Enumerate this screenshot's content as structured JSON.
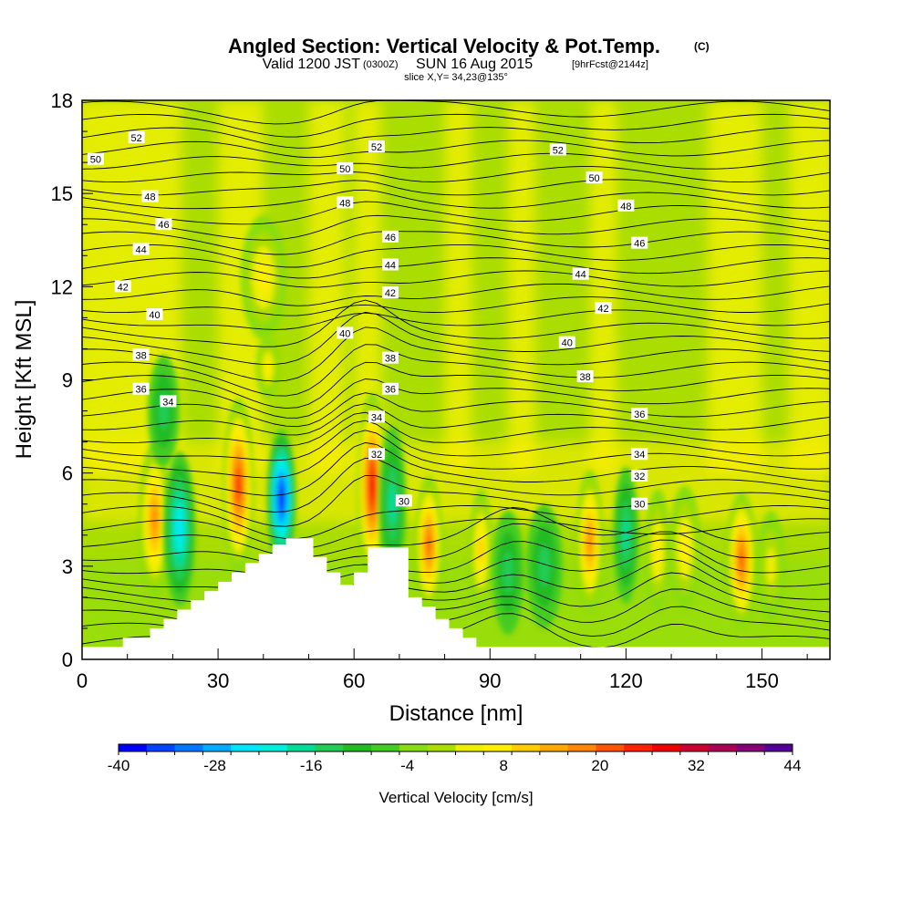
{
  "header": {
    "title": "Angled Section: Vertical Velocity & Pot.Temp.",
    "title_unit": "(C)",
    "valid_prefix": "Valid 1200 JST",
    "valid_zulu": "(0300Z)",
    "valid_date": "SUN 16 Aug 2015",
    "forecast": "[9hrFcst@2144z]",
    "slice": "slice X,Y= 34,23@135°"
  },
  "chart_data": {
    "type": "heatmap",
    "xlabel": "Distance [nm]",
    "ylabel": "Height [Kft MSL]",
    "xlim": [
      0,
      165
    ],
    "ylim": [
      0,
      18
    ],
    "x_ticks": [
      "0",
      "30",
      "60",
      "90",
      "120",
      "150"
    ],
    "y_ticks": [
      "0",
      "3",
      "6",
      "9",
      "12",
      "15",
      "18"
    ],
    "colorbar": {
      "label": "Vertical Velocity [cm/s]",
      "min": -40,
      "max": 44,
      "step": 4,
      "tick_labels": [
        "-40",
        "-28",
        "-16",
        "-4",
        "8",
        "20",
        "32",
        "44"
      ],
      "colors": [
        "#0000ff",
        "#0044ff",
        "#0077ff",
        "#00aaff",
        "#00e5ff",
        "#00eedd",
        "#00dd99",
        "#22cc55",
        "#22bb22",
        "#44cc22",
        "#88dd11",
        "#aadd00",
        "#eeee00",
        "#ffee00",
        "#ffcc00",
        "#ffaa00",
        "#ff8800",
        "#ff5500",
        "#ff2200",
        "#ee0000",
        "#cc0033",
        "#aa0055",
        "#880077",
        "#550099"
      ]
    },
    "features": [
      {
        "x": 16,
        "y": 4.5,
        "w": 3.5,
        "h": 2.5,
        "value": 22
      },
      {
        "x": 21.5,
        "y": 4.2,
        "w": 3.5,
        "h": 2.5,
        "value": -18
      },
      {
        "x": 34.5,
        "y": 5.6,
        "w": 3.5,
        "h": 2.8,
        "value": 30
      },
      {
        "x": 44,
        "y": 5.2,
        "w": 3.2,
        "h": 2.2,
        "value": -34
      },
      {
        "x": 64,
        "y": 5.6,
        "w": 3.3,
        "h": 3.0,
        "value": 36
      },
      {
        "x": 68.5,
        "y": 5.0,
        "w": 3.0,
        "h": 2.5,
        "value": -10
      },
      {
        "x": 76.5,
        "y": 3.7,
        "w": 3.0,
        "h": 2.2,
        "value": 26
      },
      {
        "x": 88,
        "y": 3.5,
        "w": 2.5,
        "h": 2.0,
        "value": 14
      },
      {
        "x": 94,
        "y": 2.8,
        "w": 3.5,
        "h": 2.0,
        "value": -8
      },
      {
        "x": 102,
        "y": 3.0,
        "w": 4.0,
        "h": 2.0,
        "value": -8
      },
      {
        "x": 112,
        "y": 3.8,
        "w": 3.0,
        "h": 2.3,
        "value": 22
      },
      {
        "x": 120,
        "y": 4.0,
        "w": 2.8,
        "h": 2.2,
        "value": -12
      },
      {
        "x": 127,
        "y": 3.5,
        "w": 2.8,
        "h": 2.0,
        "value": 10
      },
      {
        "x": 133,
        "y": 3.6,
        "w": 3.5,
        "h": 2.0,
        "value": 10
      },
      {
        "x": 145.5,
        "y": 3.2,
        "w": 3.3,
        "h": 2.2,
        "value": 28
      },
      {
        "x": 152,
        "y": 3.0,
        "w": 3.0,
        "h": 1.8,
        "value": 6
      },
      {
        "x": 18,
        "y": 8.0,
        "w": 3.5,
        "h": 1.8,
        "value": -6
      },
      {
        "x": 40,
        "y": 12.3,
        "w": 5.0,
        "h": 2.0,
        "value": 10
      },
      {
        "x": 41,
        "y": 9.4,
        "w": 2.5,
        "h": 1.0,
        "value": 12
      }
    ],
    "terrain": {
      "x": [
        0,
        9,
        9,
        15,
        15,
        18,
        18,
        21,
        21,
        24,
        24,
        27,
        27,
        30,
        30,
        33,
        33,
        36,
        36,
        39,
        39,
        42,
        42,
        45,
        45,
        51,
        51,
        54,
        54,
        57,
        57,
        60,
        60,
        63,
        63,
        66,
        66,
        72,
        72,
        75,
        75,
        78,
        78,
        81,
        81,
        84,
        84,
        87,
        87,
        165
      ],
      "y": [
        0.4,
        0.4,
        0.7,
        0.7,
        1.0,
        1.0,
        1.3,
        1.3,
        1.6,
        1.6,
        1.9,
        1.9,
        2.2,
        2.2,
        2.5,
        2.5,
        2.8,
        2.8,
        3.1,
        3.1,
        3.4,
        3.4,
        3.7,
        3.7,
        3.9,
        3.9,
        3.3,
        3.3,
        2.8,
        2.8,
        2.4,
        2.4,
        2.8,
        2.8,
        3.6,
        3.6,
        3.6,
        3.6,
        2.0,
        2.0,
        1.7,
        1.7,
        1.3,
        1.3,
        1.0,
        1.0,
        0.7,
        0.7,
        0.4,
        0.4
      ]
    },
    "isentropes": {
      "levels": [
        30,
        32,
        34,
        36,
        38,
        40,
        42,
        44,
        46,
        48,
        50,
        52
      ],
      "labels": [
        {
          "text": "52",
          "x": 12,
          "y": 16.8
        },
        {
          "text": "52",
          "x": 65,
          "y": 16.5
        },
        {
          "text": "52",
          "x": 105,
          "y": 16.4
        },
        {
          "text": "50",
          "x": 3,
          "y": 16.1
        },
        {
          "text": "50",
          "x": 58,
          "y": 15.8
        },
        {
          "text": "50",
          "x": 113,
          "y": 15.5
        },
        {
          "text": "48",
          "x": 15,
          "y": 14.9
        },
        {
          "text": "48",
          "x": 58,
          "y": 14.7
        },
        {
          "text": "48",
          "x": 120,
          "y": 14.6
        },
        {
          "text": "46",
          "x": 18,
          "y": 14.0
        },
        {
          "text": "46",
          "x": 68,
          "y": 13.6
        },
        {
          "text": "46",
          "x": 123,
          "y": 13.4
        },
        {
          "text": "44",
          "x": 13,
          "y": 13.2
        },
        {
          "text": "44",
          "x": 68,
          "y": 12.7
        },
        {
          "text": "44",
          "x": 110,
          "y": 12.4
        },
        {
          "text": "42",
          "x": 9,
          "y": 12.0
        },
        {
          "text": "42",
          "x": 68,
          "y": 11.8
        },
        {
          "text": "42",
          "x": 115,
          "y": 11.3
        },
        {
          "text": "40",
          "x": 16,
          "y": 11.1
        },
        {
          "text": "40",
          "x": 58,
          "y": 10.5
        },
        {
          "text": "40",
          "x": 107,
          "y": 10.2
        },
        {
          "text": "38",
          "x": 13,
          "y": 9.8
        },
        {
          "text": "38",
          "x": 68,
          "y": 9.7
        },
        {
          "text": "38",
          "x": 111,
          "y": 9.1
        },
        {
          "text": "36",
          "x": 13,
          "y": 8.7
        },
        {
          "text": "36",
          "x": 68,
          "y": 8.7
        },
        {
          "text": "36",
          "x": 123,
          "y": 7.9
        },
        {
          "text": "34",
          "x": 19,
          "y": 8.3
        },
        {
          "text": "34",
          "x": 65,
          "y": 7.8
        },
        {
          "text": "34",
          "x": 123,
          "y": 6.6
        },
        {
          "text": "32",
          "x": 65,
          "y": 6.6
        },
        {
          "text": "32",
          "x": 123,
          "y": 5.9
        },
        {
          "text": "30",
          "x": 71,
          "y": 5.1
        },
        {
          "text": "30",
          "x": 123,
          "y": 5.0
        }
      ]
    }
  }
}
